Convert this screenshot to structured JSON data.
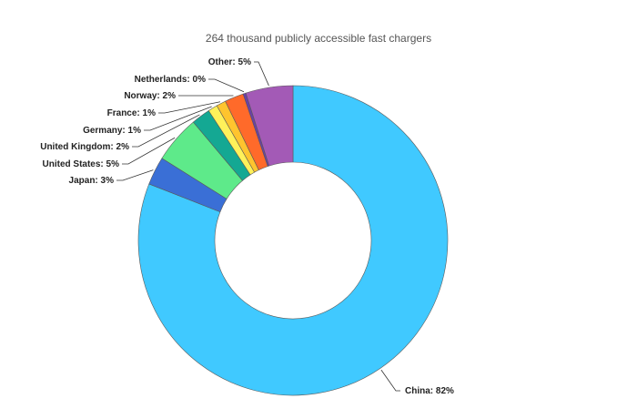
{
  "chart_data": {
    "type": "pie",
    "title": "264 thousand publicly accessible fast chargers",
    "slices": [
      {
        "label": "China",
        "value": 82,
        "display": "China: 82%",
        "color": "#40c9ff"
      },
      {
        "label": "Japan",
        "value": 3,
        "display": "Japan: 3%",
        "color": "#3a6fd6"
      },
      {
        "label": "United States",
        "value": 5,
        "display": "United States: 5%",
        "color": "#5eea8a"
      },
      {
        "label": "United Kingdom",
        "value": 2,
        "display": "United Kingdom: 2%",
        "color": "#14a893"
      },
      {
        "label": "Germany",
        "value": 1,
        "display": "Germany: 1%",
        "color": "#fff15a"
      },
      {
        "label": "France",
        "value": 1,
        "display": "France: 1%",
        "color": "#ffc42e"
      },
      {
        "label": "Norway",
        "value": 2,
        "display": "Norway: 2%",
        "color": "#ff6a2a"
      },
      {
        "label": "Netherlands",
        "value": 0.3,
        "display": "Netherlands: 0%",
        "color": "#6a3fa8"
      },
      {
        "label": "Other",
        "value": 5,
        "display": "Other: 5%",
        "color": "#a35ab6"
      }
    ]
  }
}
